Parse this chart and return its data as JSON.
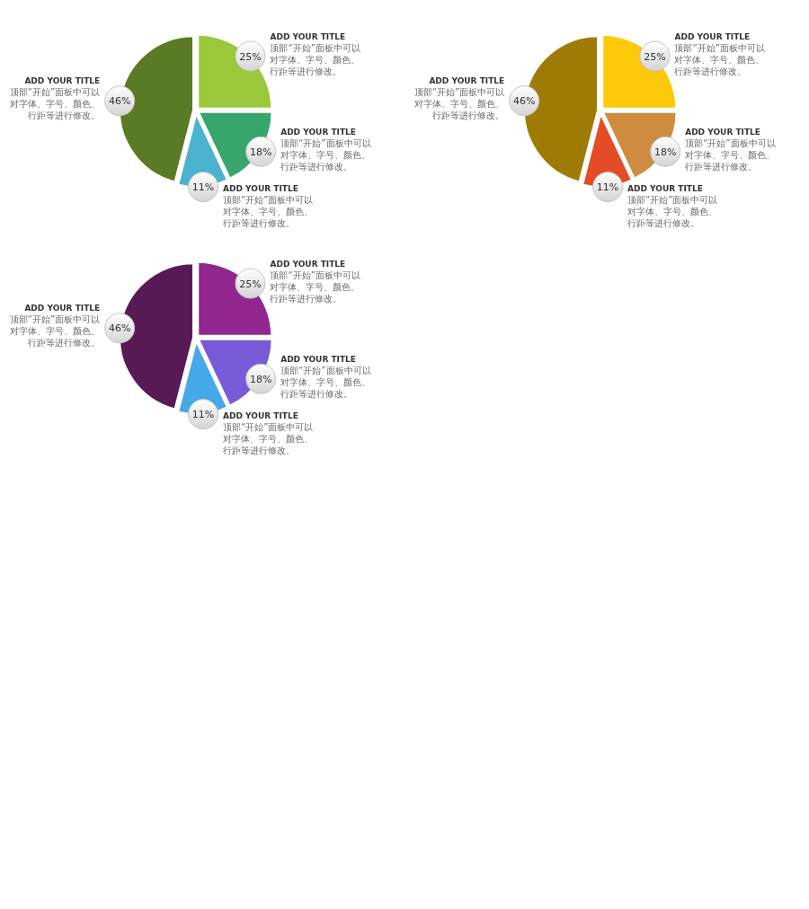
{
  "chart_data": [
    {
      "type": "pie",
      "categories": [
        "ADD YOUR TITLE",
        "ADD YOUR TITLE",
        "ADD YOUR TITLE",
        "ADD YOUR TITLE"
      ],
      "values": [
        25,
        18,
        11,
        46
      ],
      "value_labels": [
        "25%",
        "18%",
        "11%",
        "46%"
      ],
      "colors": [
        "#9bc83a",
        "#36a66e",
        "#4bb3d0",
        "#5b7a25"
      ],
      "annotations": [
        "顶部“开始”面板中可以对字体、字号、颜色、行距等进行修改。",
        "顶部“开始”面板中可以对字体、字号、颜色、行距等进行修改。",
        "顶部“开始”面板中可以对字体、字号、颜色、行距等进行修改。",
        "顶部“开始”面板中可以对字体、字号、颜色、行距等进行修改。"
      ]
    },
    {
      "type": "pie",
      "categories": [
        "ADD YOUR TITLE",
        "ADD YOUR TITLE",
        "ADD YOUR TITLE",
        "ADD YOUR TITLE"
      ],
      "values": [
        25,
        18,
        11,
        46
      ],
      "value_labels": [
        "25%",
        "18%",
        "11%",
        "46%"
      ],
      "colors": [
        "#fdc90a",
        "#cf8b3f",
        "#e34c26",
        "#9e7b05"
      ],
      "annotations": [
        "顶部“开始”面板中可以对字体、字号、颜色、行距等进行修改。",
        "顶部“开始”面板中可以对字体、字号、颜色、行距等进行修改。",
        "顶部“开始”面板中可以对字体、字号、颜色、行距等进行修改。",
        "顶部“开始”面板中可以对字体、字号、颜色、行距等进行修改。"
      ]
    },
    {
      "type": "pie",
      "categories": [
        "ADD YOUR TITLE",
        "ADD YOUR TITLE",
        "ADD YOUR TITLE",
        "ADD YOUR TITLE"
      ],
      "values": [
        25,
        18,
        11,
        46
      ],
      "value_labels": [
        "25%",
        "18%",
        "11%",
        "46%"
      ],
      "colors": [
        "#92278f",
        "#775bd8",
        "#45a8e8",
        "#581a55"
      ],
      "annotations": [
        "顶部“开始”面板中可以对字体、字号、颜色、行距等进行修改。",
        "顶部“开始”面板中可以对字体、字号、颜色、行距等进行修改。",
        "顶部“开始”面板中可以对字体、字号、颜色、行距等进行修改。",
        "顶部“开始”面板中可以对字体、字号、颜色、行距等进行修改。"
      ]
    }
  ]
}
